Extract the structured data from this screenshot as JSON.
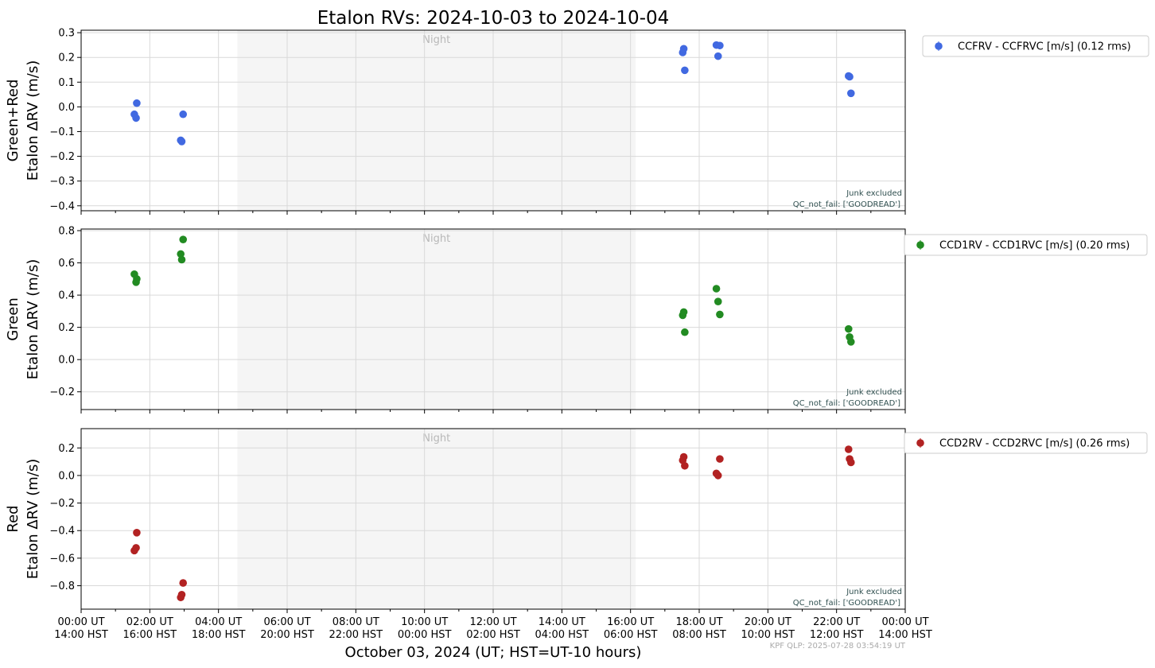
{
  "title": "Etalon RVs: 2024-10-03 to 2024-10-04",
  "xlabel": "October 03, 2024 (UT; HST=UT-10 hours)",
  "footer": "KPF QLP: 2025-07-28 03:54:19 UT",
  "night_label": "Night",
  "notes": {
    "line1": "Junk excluded",
    "line2": "QC_not_fail: ['GOODREAD']"
  },
  "x_ticks": [
    {
      "hour": 0,
      "ut": "00:00 UT",
      "hst": "14:00 HST"
    },
    {
      "hour": 2,
      "ut": "02:00 UT",
      "hst": "16:00 HST"
    },
    {
      "hour": 4,
      "ut": "04:00 UT",
      "hst": "18:00 HST"
    },
    {
      "hour": 6,
      "ut": "06:00 UT",
      "hst": "20:00 HST"
    },
    {
      "hour": 8,
      "ut": "08:00 UT",
      "hst": "22:00 HST"
    },
    {
      "hour": 10,
      "ut": "10:00 UT",
      "hst": "00:00 HST"
    },
    {
      "hour": 12,
      "ut": "12:00 UT",
      "hst": "02:00 HST"
    },
    {
      "hour": 14,
      "ut": "14:00 UT",
      "hst": "04:00 HST"
    },
    {
      "hour": 16,
      "ut": "16:00 UT",
      "hst": "06:00 HST"
    },
    {
      "hour": 18,
      "ut": "18:00 UT",
      "hst": "08:00 HST"
    },
    {
      "hour": 20,
      "ut": "20:00 UT",
      "hst": "10:00 HST"
    },
    {
      "hour": 22,
      "ut": "22:00 UT",
      "hst": "12:00 HST"
    },
    {
      "hour": 24,
      "ut": "00:00 UT",
      "hst": "14:00 HST"
    }
  ],
  "chart_data": [
    {
      "type": "scatter",
      "ylabel_line1": "Green+Red",
      "ylabel_line2": "Etalon ΔRV (m/s)",
      "xlim_hours": [
        0,
        24
      ],
      "ylim": [
        -0.42,
        0.31
      ],
      "yticks": [
        -0.4,
        -0.3,
        -0.2,
        -0.1,
        0.0,
        0.1,
        0.2,
        0.3
      ],
      "ytick_labels": [
        "−0.4",
        "−0.3",
        "−0.2",
        "−0.1",
        "0.0",
        "0.1",
        "0.2",
        "0.3"
      ],
      "night_band_hours": [
        4.55,
        16.15
      ],
      "grid": true,
      "legend": "outside-right",
      "series": [
        {
          "name": "CCFRV - CCFRVC [m/s] (0.12 rms)",
          "color": "#4169e1",
          "x": [
            1.55,
            1.6,
            1.62,
            2.9,
            2.93,
            2.97,
            17.52,
            17.55,
            17.58,
            18.5,
            18.55,
            18.6,
            22.35,
            22.38,
            22.42
          ],
          "y": [
            -0.03,
            -0.045,
            0.015,
            -0.135,
            -0.14,
            -0.03,
            0.22,
            0.235,
            0.148,
            0.25,
            0.205,
            0.248,
            0.125,
            0.122,
            0.055
          ]
        }
      ]
    },
    {
      "type": "scatter",
      "ylabel_line1": "Green",
      "ylabel_line2": "Etalon ΔRV (m/s)",
      "xlim_hours": [
        0,
        24
      ],
      "ylim": [
        -0.31,
        0.81
      ],
      "yticks": [
        -0.2,
        0.0,
        0.2,
        0.4,
        0.6,
        0.8
      ],
      "ytick_labels": [
        "−0.2",
        "0.0",
        "0.2",
        "0.4",
        "0.6",
        "0.8"
      ],
      "night_band_hours": [
        4.55,
        16.15
      ],
      "grid": true,
      "legend": "outside-right",
      "series": [
        {
          "name": "CCD1RV - CCD1RVC [m/s] (0.20 rms)",
          "color": "#228b22",
          "x": [
            1.55,
            1.6,
            1.62,
            2.9,
            2.93,
            2.97,
            17.52,
            17.55,
            17.58,
            18.5,
            18.55,
            18.6,
            22.35,
            22.38,
            22.42
          ],
          "y": [
            0.53,
            0.48,
            0.5,
            0.655,
            0.62,
            0.745,
            0.275,
            0.295,
            0.17,
            0.44,
            0.36,
            0.28,
            0.19,
            0.14,
            0.11
          ]
        }
      ]
    },
    {
      "type": "scatter",
      "ylabel_line1": "Red",
      "ylabel_line2": "Etalon ΔRV (m/s)",
      "xlim_hours": [
        0,
        24
      ],
      "ylim": [
        -0.97,
        0.34
      ],
      "yticks": [
        -0.8,
        -0.6,
        -0.4,
        -0.2,
        0.0,
        0.2
      ],
      "ytick_labels": [
        "−0.8",
        "−0.6",
        "−0.4",
        "−0.2",
        "0.0",
        "0.2"
      ],
      "night_band_hours": [
        4.55,
        16.15
      ],
      "grid": true,
      "legend": "outside-right",
      "series": [
        {
          "name": "CCD2RV - CCD2RVC [m/s] (0.26 rms)",
          "color": "#b22222",
          "x": [
            1.55,
            1.6,
            1.62,
            2.9,
            2.93,
            2.97,
            17.52,
            17.55,
            17.58,
            18.5,
            18.55,
            18.6,
            22.35,
            22.38,
            22.42
          ],
          "y": [
            -0.545,
            -0.525,
            -0.415,
            -0.885,
            -0.865,
            -0.78,
            0.11,
            0.135,
            0.07,
            0.015,
            0.0,
            0.12,
            0.19,
            0.12,
            0.095
          ]
        }
      ]
    }
  ]
}
